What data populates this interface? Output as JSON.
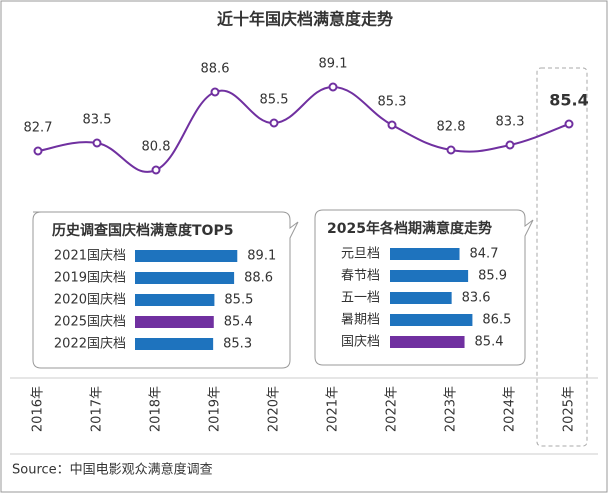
{
  "chart_data": [
    {
      "type": "line",
      "title": "近十年国庆档满意度走势",
      "categories": [
        "2016年",
        "2017年",
        "2018年",
        "2019年",
        "2020年",
        "2021年",
        "2022年",
        "2023年",
        "2024年",
        "2025年"
      ],
      "values": [
        82.7,
        83.5,
        80.8,
        88.6,
        85.5,
        89.1,
        85.3,
        82.8,
        83.3,
        85.4
      ],
      "color": "#7030a0",
      "ylim": [
        79,
        91
      ],
      "highlight_index": 9
    },
    {
      "type": "bar",
      "title": "历史调查国庆档满意度TOP5",
      "categories": [
        "2021国庆档",
        "2019国庆档",
        "2020国庆档",
        "2025国庆档",
        "2022国庆档"
      ],
      "values": [
        89.1,
        88.6,
        85.5,
        85.4,
        85.3
      ],
      "colors": [
        "#1e73be",
        "#1e73be",
        "#1e73be",
        "#7030a0",
        "#1e73be"
      ],
      "xlim": [
        73,
        90
      ]
    },
    {
      "type": "bar",
      "title": "2025年各档期满意度走势",
      "categories": [
        "元旦档",
        "春节档",
        "五一档",
        "暑期档",
        "国庆档"
      ],
      "values": [
        84.7,
        85.9,
        83.6,
        86.5,
        85.4
      ],
      "colors": [
        "#1e73be",
        "#1e73be",
        "#1e73be",
        "#1e73be",
        "#7030a0"
      ],
      "xlim": [
        75,
        87
      ]
    }
  ],
  "source": "Source：中国电影观众满意度调查"
}
